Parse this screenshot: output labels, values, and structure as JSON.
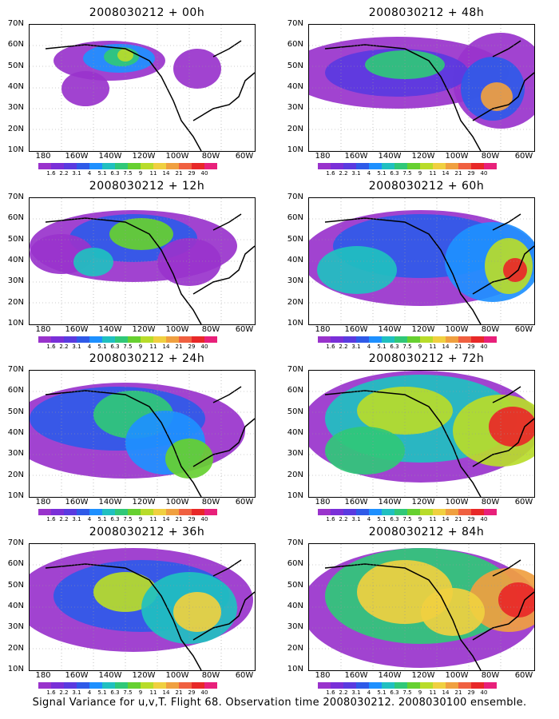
{
  "panels": [
    {
      "title": "2008030212 + 00h"
    },
    {
      "title": "2008030212 + 48h"
    },
    {
      "title": "2008030212 + 12h"
    },
    {
      "title": "2008030212 + 60h"
    },
    {
      "title": "2008030212 + 24h"
    },
    {
      "title": "2008030212 + 72h"
    },
    {
      "title": "2008030212 + 36h"
    },
    {
      "title": "2008030212 + 84h"
    }
  ],
  "y_axis_labels": [
    "70N",
    "60N",
    "50N",
    "40N",
    "30N",
    "20N",
    "10N"
  ],
  "x_axis_labels": [
    "180",
    "160W",
    "140W",
    "120W",
    "100W",
    "80W",
    "60W"
  ],
  "colorbar": {
    "labels": [
      "1.6",
      "2.2",
      "3.1",
      "4",
      "5.1",
      "6.3",
      "7.5",
      "9",
      "11",
      "14",
      "21",
      "29",
      "40"
    ],
    "colors": [
      "#9933cc",
      "#7a2fd8",
      "#5a3ae0",
      "#2f5ae8",
      "#1e90ff",
      "#20c0c0",
      "#30c878",
      "#66d030",
      "#b8dc2a",
      "#f0d040",
      "#f0a040",
      "#f06040",
      "#e82828",
      "#e8207a"
    ]
  },
  "caption": "Signal Variance for u,v,T. Flight 68. Observation time 2008030212. 2008030100 ensemble."
}
